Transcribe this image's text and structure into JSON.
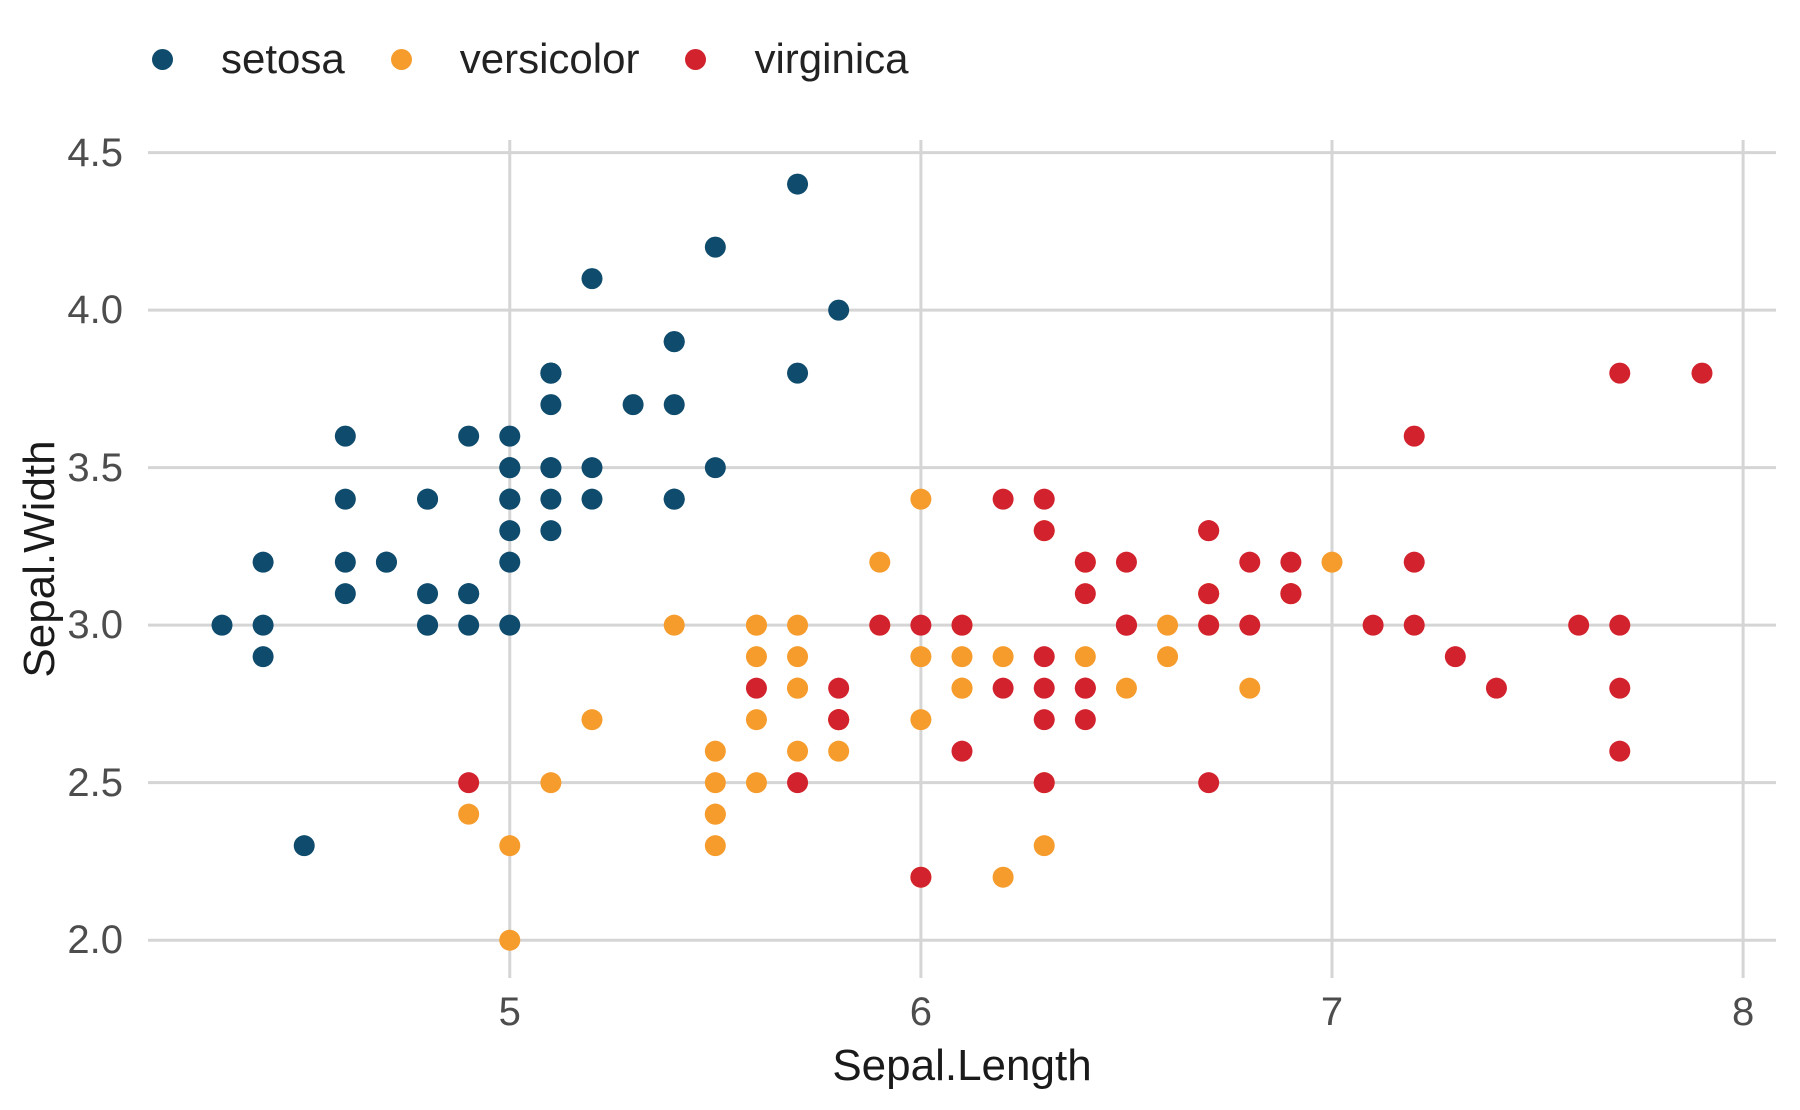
{
  "colors": {
    "background": "#FFFFFF",
    "gridline": "#D5D5D5",
    "tick_label": "#4D4D4D",
    "axis_title": "#1A1A1A",
    "legend_label": "#222222"
  },
  "chart_data": {
    "type": "scatter",
    "xlabel": "Sepal.Length",
    "ylabel": "Sepal.Width",
    "xlim": [
      4.12,
      8.08
    ],
    "ylim": [
      1.88,
      4.54
    ],
    "xticks": [
      5,
      6,
      7,
      8
    ],
    "yticks": [
      2.0,
      2.5,
      3.0,
      3.5,
      4.0,
      4.5
    ],
    "xtick_labels": [
      "5",
      "6",
      "7",
      "8"
    ],
    "ytick_labels": [
      "2.0",
      "2.5",
      "3.0",
      "3.5",
      "4.0",
      "4.5"
    ],
    "grid": true,
    "legend_position": "top-left",
    "point_radius": 10.5,
    "series": [
      {
        "name": "setosa",
        "color": "#0F4B6C",
        "points": [
          [
            5.1,
            3.5
          ],
          [
            4.9,
            3.0
          ],
          [
            4.7,
            3.2
          ],
          [
            4.6,
            3.1
          ],
          [
            5.0,
            3.6
          ],
          [
            5.4,
            3.9
          ],
          [
            4.6,
            3.4
          ],
          [
            5.0,
            3.4
          ],
          [
            4.4,
            2.9
          ],
          [
            4.9,
            3.1
          ],
          [
            5.4,
            3.7
          ],
          [
            4.8,
            3.4
          ],
          [
            4.8,
            3.0
          ],
          [
            4.3,
            3.0
          ],
          [
            5.8,
            4.0
          ],
          [
            5.7,
            4.4
          ],
          [
            5.4,
            3.9
          ],
          [
            5.1,
            3.5
          ],
          [
            5.7,
            3.8
          ],
          [
            5.1,
            3.8
          ],
          [
            5.4,
            3.4
          ],
          [
            5.1,
            3.7
          ],
          [
            4.6,
            3.6
          ],
          [
            5.1,
            3.3
          ],
          [
            4.8,
            3.4
          ],
          [
            5.0,
            3.0
          ],
          [
            5.0,
            3.4
          ],
          [
            5.2,
            3.5
          ],
          [
            5.2,
            3.4
          ],
          [
            4.7,
            3.2
          ],
          [
            4.8,
            3.1
          ],
          [
            5.4,
            3.4
          ],
          [
            5.2,
            4.1
          ],
          [
            5.5,
            4.2
          ],
          [
            4.9,
            3.1
          ],
          [
            5.0,
            3.2
          ],
          [
            5.5,
            3.5
          ],
          [
            4.9,
            3.6
          ],
          [
            4.4,
            3.0
          ],
          [
            5.1,
            3.4
          ],
          [
            5.0,
            3.5
          ],
          [
            4.5,
            2.3
          ],
          [
            4.4,
            3.2
          ],
          [
            5.0,
            3.5
          ],
          [
            5.1,
            3.8
          ],
          [
            4.8,
            3.0
          ],
          [
            5.1,
            3.8
          ],
          [
            4.6,
            3.2
          ],
          [
            5.3,
            3.7
          ],
          [
            5.0,
            3.3
          ]
        ]
      },
      {
        "name": "versicolor",
        "color": "#F69C2D",
        "points": [
          [
            7.0,
            3.2
          ],
          [
            6.4,
            3.2
          ],
          [
            6.9,
            3.1
          ],
          [
            5.5,
            2.3
          ],
          [
            6.5,
            2.8
          ],
          [
            5.7,
            2.8
          ],
          [
            6.3,
            3.3
          ],
          [
            4.9,
            2.4
          ],
          [
            6.6,
            2.9
          ],
          [
            5.2,
            2.7
          ],
          [
            5.0,
            2.0
          ],
          [
            5.9,
            3.0
          ],
          [
            6.0,
            2.2
          ],
          [
            6.1,
            2.9
          ],
          [
            5.6,
            2.9
          ],
          [
            6.7,
            3.1
          ],
          [
            5.6,
            3.0
          ],
          [
            5.8,
            2.7
          ],
          [
            6.2,
            2.2
          ],
          [
            5.6,
            2.5
          ],
          [
            5.9,
            3.2
          ],
          [
            6.1,
            2.8
          ],
          [
            6.3,
            2.5
          ],
          [
            6.1,
            2.8
          ],
          [
            6.4,
            2.9
          ],
          [
            6.6,
            3.0
          ],
          [
            6.8,
            2.8
          ],
          [
            6.7,
            3.0
          ],
          [
            6.0,
            2.9
          ],
          [
            5.7,
            2.6
          ],
          [
            5.5,
            2.4
          ],
          [
            5.5,
            2.4
          ],
          [
            5.8,
            2.7
          ],
          [
            6.0,
            2.7
          ],
          [
            5.4,
            3.0
          ],
          [
            6.0,
            3.4
          ],
          [
            6.7,
            3.1
          ],
          [
            6.3,
            2.3
          ],
          [
            5.6,
            3.0
          ],
          [
            5.5,
            2.5
          ],
          [
            5.5,
            2.6
          ],
          [
            6.1,
            3.0
          ],
          [
            5.8,
            2.6
          ],
          [
            5.0,
            2.3
          ],
          [
            5.6,
            2.7
          ],
          [
            5.7,
            3.0
          ],
          [
            5.7,
            2.9
          ],
          [
            6.2,
            2.9
          ],
          [
            5.1,
            2.5
          ],
          [
            5.7,
            2.8
          ]
        ]
      },
      {
        "name": "virginica",
        "color": "#D2222D",
        "points": [
          [
            6.3,
            3.3
          ],
          [
            5.8,
            2.7
          ],
          [
            7.1,
            3.0
          ],
          [
            6.3,
            2.9
          ],
          [
            6.5,
            3.0
          ],
          [
            7.6,
            3.0
          ],
          [
            4.9,
            2.5
          ],
          [
            7.3,
            2.9
          ],
          [
            6.7,
            2.5
          ],
          [
            7.2,
            3.6
          ],
          [
            6.5,
            3.2
          ],
          [
            6.4,
            2.7
          ],
          [
            6.8,
            3.0
          ],
          [
            5.7,
            2.5
          ],
          [
            5.8,
            2.8
          ],
          [
            6.4,
            3.2
          ],
          [
            6.5,
            3.0
          ],
          [
            7.7,
            3.8
          ],
          [
            7.7,
            2.6
          ],
          [
            6.0,
            2.2
          ],
          [
            6.9,
            3.2
          ],
          [
            5.6,
            2.8
          ],
          [
            7.7,
            2.8
          ],
          [
            6.3,
            2.7
          ],
          [
            6.7,
            3.3
          ],
          [
            7.2,
            3.2
          ],
          [
            6.2,
            2.8
          ],
          [
            6.1,
            3.0
          ],
          [
            6.4,
            2.8
          ],
          [
            7.2,
            3.0
          ],
          [
            7.4,
            2.8
          ],
          [
            7.9,
            3.8
          ],
          [
            6.4,
            2.8
          ],
          [
            6.3,
            2.8
          ],
          [
            6.1,
            2.6
          ],
          [
            7.7,
            3.0
          ],
          [
            6.3,
            3.4
          ],
          [
            6.4,
            3.1
          ],
          [
            6.0,
            3.0
          ],
          [
            6.9,
            3.1
          ],
          [
            6.7,
            3.1
          ],
          [
            6.9,
            3.1
          ],
          [
            5.8,
            2.7
          ],
          [
            6.8,
            3.2
          ],
          [
            6.7,
            3.3
          ],
          [
            6.7,
            3.0
          ],
          [
            6.3,
            2.5
          ],
          [
            6.5,
            3.0
          ],
          [
            6.2,
            3.4
          ],
          [
            5.9,
            3.0
          ]
        ]
      }
    ]
  }
}
